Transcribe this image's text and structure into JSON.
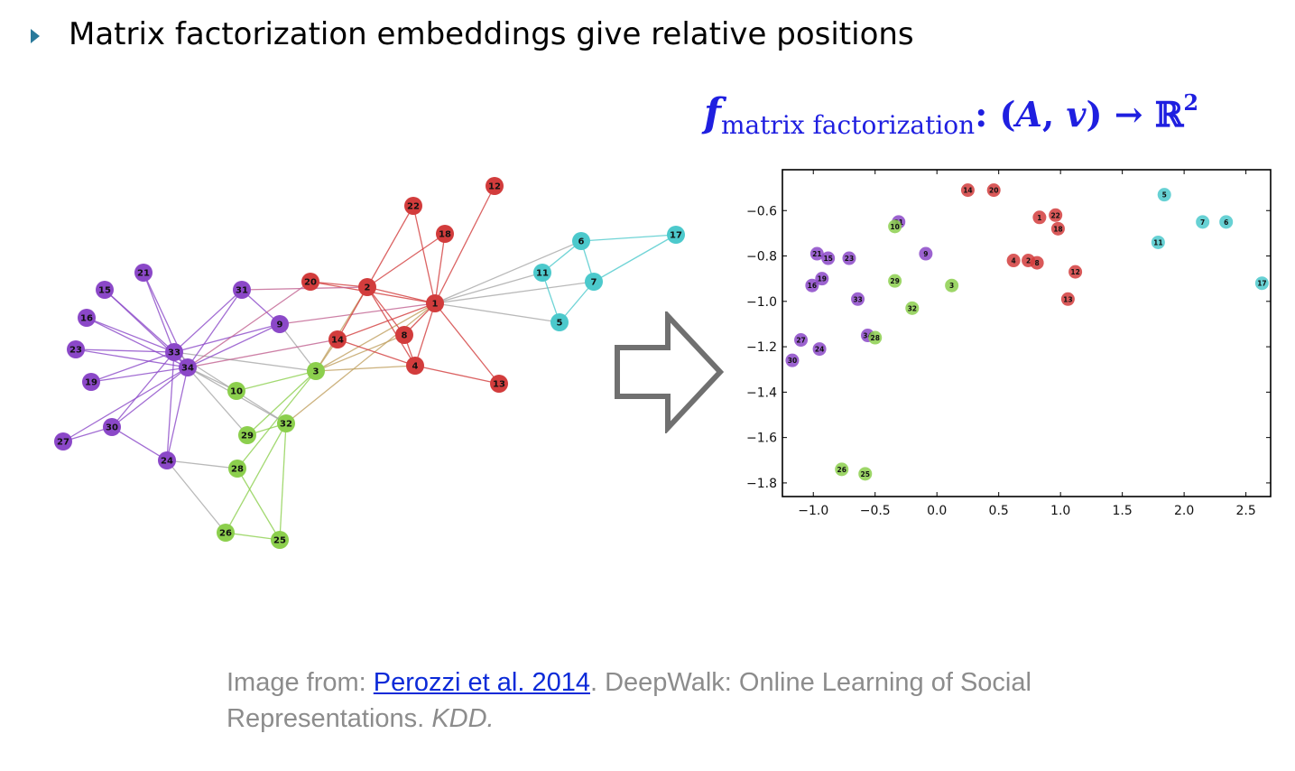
{
  "slide": {
    "title": "Matrix factorization embeddings give relative positions",
    "formula": {
      "f": "f",
      "subscript": "matrix factorization",
      "rest_open": ": (",
      "A": "A",
      "comma": ", ",
      "v": "v",
      "rest_close": ") → ℝ",
      "sup": "2"
    },
    "caption": {
      "prefix": "Image from: ",
      "link_text": "Perozzi et al. 2014",
      "middle": ". DeepWalk: Online Learning of Social Representations. ",
      "venue": "KDD."
    }
  },
  "colors": {
    "accent_bullet": "#2a7a9b",
    "formula": "#1f1fe0",
    "purple": "#8b48c8",
    "green": "#8ccf4d",
    "red": "#d23c3c",
    "cyan": "#4cc9cc",
    "link": "#0b2ad8",
    "caption": "#8c8c8c"
  },
  "graph": {
    "nodes": [
      {
        "id": "1",
        "group": "red"
      },
      {
        "id": "2",
        "group": "red"
      },
      {
        "id": "3",
        "group": "green"
      },
      {
        "id": "4",
        "group": "red"
      },
      {
        "id": "5",
        "group": "cyan"
      },
      {
        "id": "6",
        "group": "cyan"
      },
      {
        "id": "7",
        "group": "cyan"
      },
      {
        "id": "8",
        "group": "red"
      },
      {
        "id": "9",
        "group": "purple"
      },
      {
        "id": "10",
        "group": "green"
      },
      {
        "id": "11",
        "group": "cyan"
      },
      {
        "id": "12",
        "group": "red"
      },
      {
        "id": "13",
        "group": "red"
      },
      {
        "id": "14",
        "group": "red"
      },
      {
        "id": "15",
        "group": "purple"
      },
      {
        "id": "16",
        "group": "purple"
      },
      {
        "id": "17",
        "group": "cyan"
      },
      {
        "id": "18",
        "group": "red"
      },
      {
        "id": "19",
        "group": "purple"
      },
      {
        "id": "20",
        "group": "red"
      },
      {
        "id": "21",
        "group": "purple"
      },
      {
        "id": "22",
        "group": "red"
      },
      {
        "id": "23",
        "group": "purple"
      },
      {
        "id": "24",
        "group": "purple"
      },
      {
        "id": "25",
        "group": "green"
      },
      {
        "id": "26",
        "group": "green"
      },
      {
        "id": "27",
        "group": "purple"
      },
      {
        "id": "28",
        "group": "green"
      },
      {
        "id": "29",
        "group": "green"
      },
      {
        "id": "30",
        "group": "purple"
      },
      {
        "id": "31",
        "group": "purple"
      },
      {
        "id": "32",
        "group": "green"
      },
      {
        "id": "33",
        "group": "purple"
      },
      {
        "id": "34",
        "group": "purple"
      }
    ],
    "edges": [
      [
        "1",
        "2"
      ],
      [
        "1",
        "3"
      ],
      [
        "1",
        "4"
      ],
      [
        "1",
        "5"
      ],
      [
        "1",
        "6"
      ],
      [
        "1",
        "7"
      ],
      [
        "1",
        "8"
      ],
      [
        "1",
        "9"
      ],
      [
        "1",
        "11"
      ],
      [
        "1",
        "12"
      ],
      [
        "1",
        "13"
      ],
      [
        "1",
        "14"
      ],
      [
        "1",
        "18"
      ],
      [
        "1",
        "20"
      ],
      [
        "1",
        "22"
      ],
      [
        "1",
        "32"
      ],
      [
        "2",
        "3"
      ],
      [
        "2",
        "4"
      ],
      [
        "2",
        "8"
      ],
      [
        "2",
        "14"
      ],
      [
        "2",
        "18"
      ],
      [
        "2",
        "20"
      ],
      [
        "2",
        "22"
      ],
      [
        "2",
        "31"
      ],
      [
        "3",
        "4"
      ],
      [
        "3",
        "8"
      ],
      [
        "3",
        "9"
      ],
      [
        "3",
        "10"
      ],
      [
        "3",
        "14"
      ],
      [
        "3",
        "28"
      ],
      [
        "3",
        "29"
      ],
      [
        "3",
        "33"
      ],
      [
        "4",
        "8"
      ],
      [
        "4",
        "13"
      ],
      [
        "4",
        "14"
      ],
      [
        "5",
        "7"
      ],
      [
        "5",
        "11"
      ],
      [
        "6",
        "7"
      ],
      [
        "6",
        "11"
      ],
      [
        "6",
        "17"
      ],
      [
        "7",
        "17"
      ],
      [
        "9",
        "31"
      ],
      [
        "9",
        "33"
      ],
      [
        "9",
        "34"
      ],
      [
        "10",
        "34"
      ],
      [
        "14",
        "34"
      ],
      [
        "15",
        "33"
      ],
      [
        "15",
        "34"
      ],
      [
        "16",
        "33"
      ],
      [
        "16",
        "34"
      ],
      [
        "19",
        "33"
      ],
      [
        "19",
        "34"
      ],
      [
        "20",
        "34"
      ],
      [
        "21",
        "33"
      ],
      [
        "21",
        "34"
      ],
      [
        "23",
        "33"
      ],
      [
        "23",
        "34"
      ],
      [
        "24",
        "26"
      ],
      [
        "24",
        "28"
      ],
      [
        "24",
        "30"
      ],
      [
        "24",
        "33"
      ],
      [
        "24",
        "34"
      ],
      [
        "25",
        "26"
      ],
      [
        "25",
        "28"
      ],
      [
        "25",
        "32"
      ],
      [
        "26",
        "32"
      ],
      [
        "27",
        "30"
      ],
      [
        "27",
        "34"
      ],
      [
        "29",
        "32"
      ],
      [
        "29",
        "34"
      ],
      [
        "30",
        "33"
      ],
      [
        "30",
        "34"
      ],
      [
        "31",
        "33"
      ],
      [
        "31",
        "34"
      ],
      [
        "32",
        "33"
      ],
      [
        "32",
        "34"
      ],
      [
        "33",
        "34"
      ]
    ]
  },
  "chart_data": {
    "type": "scatter",
    "xlim": [
      -1.25,
      2.7
    ],
    "ylim": [
      -1.86,
      -0.42
    ],
    "xticks": [
      "−1.0",
      "−0.5",
      "0.0",
      "0.5",
      "1.0",
      "1.5",
      "2.0",
      "2.5"
    ],
    "xtick_values": [
      -1.0,
      -0.5,
      0.0,
      0.5,
      1.0,
      1.5,
      2.0,
      2.5
    ],
    "yticks": [
      "−0.6",
      "−0.8",
      "−1.0",
      "−1.2",
      "−1.4",
      "−1.6",
      "−1.8"
    ],
    "ytick_values": [
      -0.6,
      -0.8,
      -1.0,
      -1.2,
      -1.4,
      -1.6,
      -1.8
    ],
    "grid": false,
    "points": [
      {
        "label": "14",
        "x": 0.25,
        "y": -0.51,
        "group": "red"
      },
      {
        "label": "20",
        "x": 0.46,
        "y": -0.51,
        "group": "red"
      },
      {
        "label": "1",
        "x": 0.83,
        "y": -0.63,
        "group": "red"
      },
      {
        "label": "22",
        "x": 0.96,
        "y": -0.62,
        "group": "red"
      },
      {
        "label": "18",
        "x": 0.98,
        "y": -0.68,
        "group": "red"
      },
      {
        "label": "4",
        "x": 0.62,
        "y": -0.82,
        "group": "red"
      },
      {
        "label": "2",
        "x": 0.74,
        "y": -0.82,
        "group": "red"
      },
      {
        "label": "8",
        "x": 0.81,
        "y": -0.83,
        "group": "red"
      },
      {
        "label": "12",
        "x": 1.12,
        "y": -0.87,
        "group": "red"
      },
      {
        "label": "13",
        "x": 1.06,
        "y": -0.99,
        "group": "red"
      },
      {
        "label": "5",
        "x": 1.84,
        "y": -0.53,
        "group": "cyan"
      },
      {
        "label": "7",
        "x": 2.15,
        "y": -0.65,
        "group": "cyan"
      },
      {
        "label": "6",
        "x": 2.34,
        "y": -0.65,
        "group": "cyan"
      },
      {
        "label": "11",
        "x": 1.79,
        "y": -0.74,
        "group": "cyan"
      },
      {
        "label": "17",
        "x": 2.63,
        "y": -0.92,
        "group": "cyan"
      },
      {
        "label": "31",
        "x": -0.31,
        "y": -0.65,
        "group": "purple"
      },
      {
        "label": "9",
        "x": -0.09,
        "y": -0.79,
        "group": "purple"
      },
      {
        "label": "21",
        "x": -0.97,
        "y": -0.79,
        "group": "purple"
      },
      {
        "label": "15",
        "x": -0.88,
        "y": -0.81,
        "group": "purple"
      },
      {
        "label": "23",
        "x": -0.71,
        "y": -0.81,
        "group": "purple"
      },
      {
        "label": "19",
        "x": -0.93,
        "y": -0.9,
        "group": "purple"
      },
      {
        "label": "16",
        "x": -1.01,
        "y": -0.93,
        "group": "purple"
      },
      {
        "label": "33",
        "x": -0.64,
        "y": -0.99,
        "group": "purple"
      },
      {
        "label": "34",
        "x": -0.56,
        "y": -1.15,
        "group": "purple"
      },
      {
        "label": "27",
        "x": -1.1,
        "y": -1.17,
        "group": "purple"
      },
      {
        "label": "24",
        "x": -0.95,
        "y": -1.21,
        "group": "purple"
      },
      {
        "label": "30",
        "x": -1.17,
        "y": -1.26,
        "group": "purple"
      },
      {
        "label": "10",
        "x": -0.34,
        "y": -0.67,
        "group": "green"
      },
      {
        "label": "29",
        "x": -0.34,
        "y": -0.91,
        "group": "green"
      },
      {
        "label": "3",
        "x": 0.12,
        "y": -0.93,
        "group": "green"
      },
      {
        "label": "32",
        "x": -0.2,
        "y": -1.03,
        "group": "green"
      },
      {
        "label": "28",
        "x": -0.5,
        "y": -1.16,
        "group": "green"
      },
      {
        "label": "26",
        "x": -0.77,
        "y": -1.74,
        "group": "green"
      },
      {
        "label": "25",
        "x": -0.58,
        "y": -1.76,
        "group": "green"
      }
    ]
  }
}
